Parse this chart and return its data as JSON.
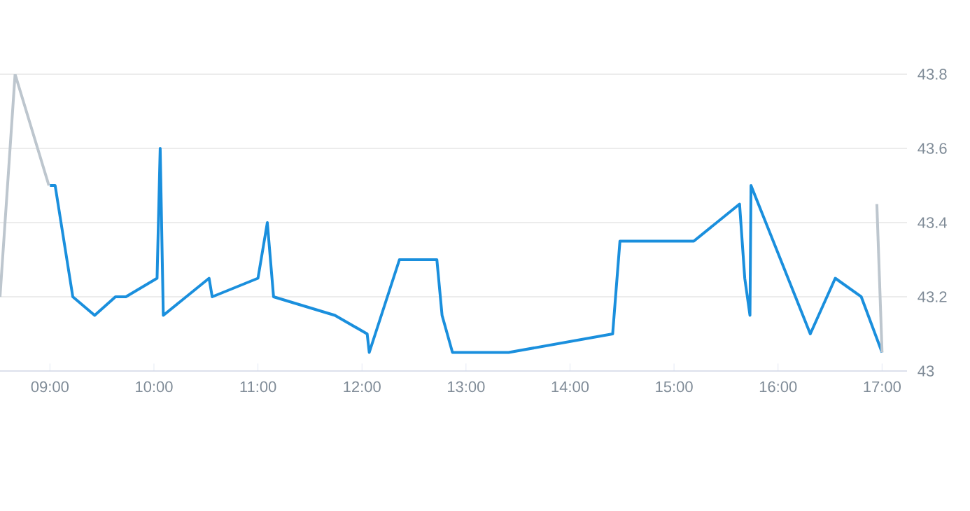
{
  "chart_data": {
    "type": "line",
    "xlim": [
      8.52,
      17.24
    ],
    "ylim": [
      43,
      43.8
    ],
    "xticks": [
      {
        "value": 9,
        "label": "09:00"
      },
      {
        "value": 10,
        "label": "10:00"
      },
      {
        "value": 11,
        "label": "11:00"
      },
      {
        "value": 12,
        "label": "12:00"
      },
      {
        "value": 13,
        "label": "13:00"
      },
      {
        "value": 14,
        "label": "14:00"
      },
      {
        "value": 15,
        "label": "15:00"
      },
      {
        "value": 16,
        "label": "16:00"
      },
      {
        "value": 17,
        "label": "17:00"
      }
    ],
    "yticks": [
      43,
      43.2,
      43.4,
      43.6,
      43.8
    ],
    "grid": "y",
    "marker": "none",
    "line_style": "solid",
    "series": [
      {
        "color": "#bdc6ce",
        "x": [
          8.52,
          8.665,
          8.99
        ],
        "values": [
          43.2,
          43.8,
          43.5
        ]
      },
      {
        "color": "#1a8fdd",
        "x": [
          9.0,
          9.05,
          9.22,
          9.43,
          9.63,
          9.73,
          10.03,
          10.06,
          10.09,
          10.53,
          10.56,
          11.0,
          11.09,
          11.15,
          11.74,
          12.05,
          12.07,
          12.36,
          12.72,
          12.77,
          12.87,
          13.41,
          14.41,
          14.48,
          15.19,
          15.63,
          15.68,
          15.73,
          15.74,
          16.31,
          16.55,
          16.8,
          17.0
        ],
        "values": [
          43.5,
          43.5,
          43.2,
          43.15,
          43.2,
          43.2,
          43.25,
          43.6,
          43.15,
          43.25,
          43.2,
          43.25,
          43.4,
          43.2,
          43.15,
          43.1,
          43.05,
          43.3,
          43.3,
          43.15,
          43.05,
          43.05,
          43.1,
          43.35,
          43.35,
          43.45,
          43.25,
          43.15,
          43.5,
          43.1,
          43.25,
          43.2,
          43.05
        ]
      },
      {
        "color": "#bdc6ce",
        "x": [
          16.95,
          17.0
        ],
        "values": [
          43.45,
          43.05
        ]
      }
    ]
  }
}
